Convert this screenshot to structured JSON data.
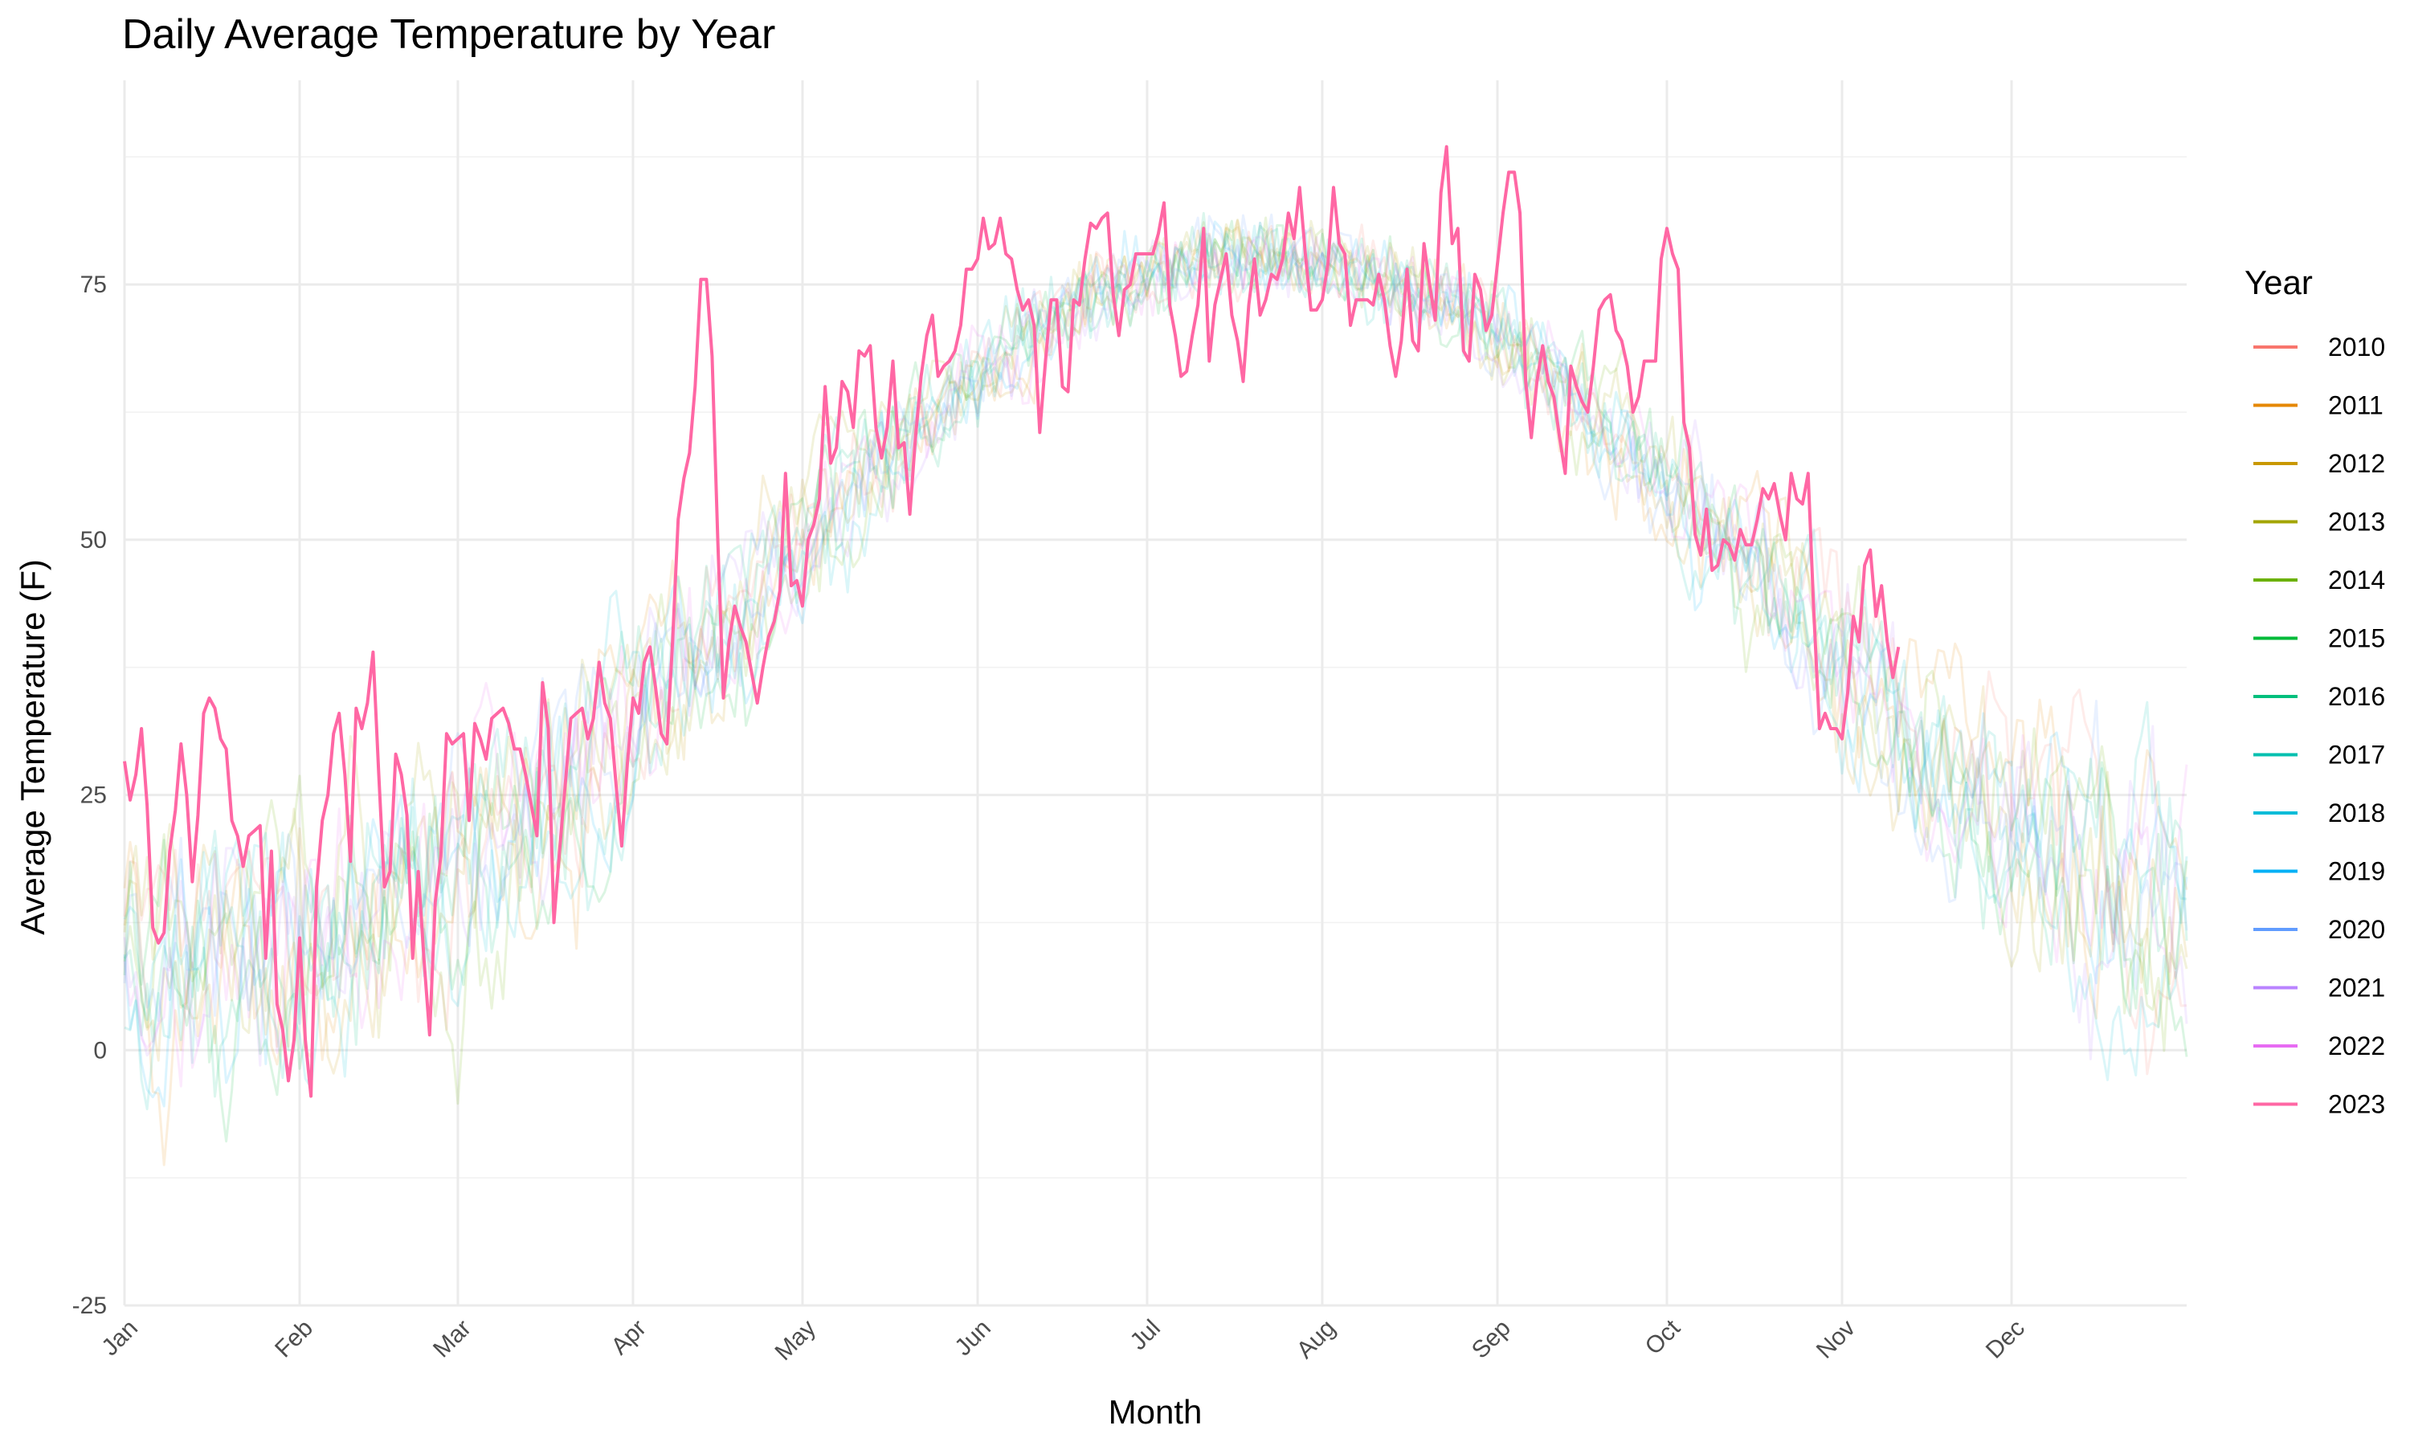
{
  "chart_data": {
    "type": "line",
    "title": "Daily Average Temperature by Year",
    "xlabel": "Month",
    "ylabel": "Average Temperature (F)",
    "x_ticks": [
      "Jan",
      "Feb",
      "Mar",
      "Apr",
      "May",
      "Jun",
      "Jul",
      "Aug",
      "Sep",
      "Oct",
      "Nov",
      "Dec"
    ],
    "y_ticks": [
      -25,
      0,
      25,
      50,
      75
    ],
    "ylim": [
      -25,
      95
    ],
    "xlim_days": [
      1,
      366
    ],
    "grid": true,
    "legend": {
      "title": "Year",
      "placement": "right",
      "entries": [
        {
          "name": "2010",
          "color": "#F8766D"
        },
        {
          "name": "2011",
          "color": "#E58700"
        },
        {
          "name": "2012",
          "color": "#C99800"
        },
        {
          "name": "2013",
          "color": "#A3A500"
        },
        {
          "name": "2014",
          "color": "#6BB100"
        },
        {
          "name": "2015",
          "color": "#00BA38"
        },
        {
          "name": "2016",
          "color": "#00BF7D"
        },
        {
          "name": "2017",
          "color": "#00C0AF"
        },
        {
          "name": "2018",
          "color": "#00BCD8"
        },
        {
          "name": "2019",
          "color": "#00B0F6"
        },
        {
          "name": "2020",
          "color": "#619CFF"
        },
        {
          "name": "2021",
          "color": "#B983FF"
        },
        {
          "name": "2022",
          "color": "#E76BF3"
        },
        {
          "name": "2023",
          "color": "#FF67A4"
        }
      ]
    },
    "highlight_series": {
      "name": "2023",
      "color": "#FF67A4",
      "points": [
        [
          1,
          28.3
        ],
        [
          2,
          24.5
        ],
        [
          3,
          27
        ],
        [
          4,
          31.5
        ],
        [
          5,
          24
        ],
        [
          6,
          12
        ],
        [
          7,
          10.5
        ],
        [
          8,
          11.5
        ],
        [
          9,
          19.5
        ],
        [
          10,
          23.5
        ],
        [
          11,
          30
        ],
        [
          12,
          25
        ],
        [
          13,
          16.5
        ],
        [
          14,
          23
        ],
        [
          15,
          33
        ],
        [
          16,
          34.5
        ],
        [
          17,
          33.5
        ],
        [
          18,
          30.5
        ],
        [
          19,
          29.5
        ],
        [
          20,
          22.5
        ],
        [
          21,
          21
        ],
        [
          22,
          18
        ],
        [
          23,
          21
        ],
        [
          24,
          21.5
        ],
        [
          25,
          22
        ],
        [
          26,
          9
        ],
        [
          27,
          19.5
        ],
        [
          28,
          4.5
        ],
        [
          29,
          2
        ],
        [
          30,
          -3
        ],
        [
          31,
          1
        ],
        [
          32,
          11
        ],
        [
          33,
          1
        ],
        [
          34,
          -4.5
        ],
        [
          35,
          16
        ],
        [
          36,
          22.5
        ],
        [
          37,
          25
        ],
        [
          38,
          31
        ],
        [
          39,
          33
        ],
        [
          40,
          27
        ],
        [
          41,
          18.5
        ],
        [
          42,
          33.5
        ],
        [
          43,
          31.5
        ],
        [
          44,
          34
        ],
        [
          45,
          39
        ],
        [
          46,
          27
        ],
        [
          47,
          16
        ],
        [
          48,
          17.5
        ],
        [
          49,
          29
        ],
        [
          50,
          27
        ],
        [
          51,
          23
        ],
        [
          52,
          9
        ],
        [
          53,
          17.5
        ],
        [
          54,
          9
        ],
        [
          55,
          1.5
        ],
        [
          56,
          14.5
        ],
        [
          57,
          19
        ],
        [
          58,
          31
        ],
        [
          59,
          30
        ],
        [
          60,
          30.5
        ],
        [
          61,
          31
        ],
        [
          62,
          22.5
        ],
        [
          63,
          32
        ],
        [
          64,
          30.5
        ],
        [
          65,
          28.5
        ],
        [
          66,
          32.5
        ],
        [
          67,
          33
        ],
        [
          68,
          33.5
        ],
        [
          69,
          32
        ],
        [
          70,
          29.5
        ],
        [
          71,
          29.5
        ],
        [
          72,
          27
        ],
        [
          73,
          24
        ],
        [
          74,
          21
        ],
        [
          75,
          36
        ],
        [
          76,
          31.5
        ],
        [
          77,
          12.5
        ],
        [
          78,
          19.5
        ],
        [
          79,
          26
        ],
        [
          80,
          32.5
        ],
        [
          81,
          33
        ],
        [
          82,
          33.5
        ],
        [
          83,
          30.5
        ],
        [
          84,
          32.5
        ],
        [
          85,
          38
        ],
        [
          86,
          34
        ],
        [
          87,
          32.5
        ],
        [
          88,
          26
        ],
        [
          89,
          20
        ],
        [
          90,
          28
        ],
        [
          91,
          34.5
        ],
        [
          92,
          33
        ],
        [
          93,
          38
        ],
        [
          94,
          39.5
        ],
        [
          95,
          35.5
        ],
        [
          96,
          31
        ],
        [
          97,
          30
        ],
        [
          98,
          40
        ],
        [
          99,
          52
        ],
        [
          100,
          56
        ],
        [
          101,
          58.5
        ],
        [
          102,
          65
        ],
        [
          103,
          75.5
        ],
        [
          104,
          75.5
        ],
        [
          105,
          68
        ],
        [
          106,
          50
        ],
        [
          107,
          34.5
        ],
        [
          108,
          40
        ],
        [
          109,
          43.5
        ],
        [
          110,
          41.5
        ],
        [
          111,
          40
        ],
        [
          112,
          37
        ],
        [
          113,
          34
        ],
        [
          114,
          37.5
        ],
        [
          115,
          40.5
        ],
        [
          116,
          42
        ],
        [
          117,
          45
        ],
        [
          118,
          56.5
        ],
        [
          119,
          45.5
        ],
        [
          120,
          46
        ],
        [
          121,
          43.5
        ],
        [
          122,
          50
        ],
        [
          123,
          51.5
        ],
        [
          124,
          54
        ],
        [
          125,
          65
        ],
        [
          126,
          57.5
        ],
        [
          127,
          59
        ],
        [
          128,
          65.5
        ],
        [
          129,
          64.5
        ],
        [
          130,
          61
        ],
        [
          131,
          68.5
        ],
        [
          132,
          68
        ],
        [
          133,
          69
        ],
        [
          134,
          61
        ],
        [
          135,
          58
        ],
        [
          136,
          61
        ],
        [
          137,
          67.5
        ],
        [
          138,
          59
        ],
        [
          139,
          59.5
        ],
        [
          140,
          52.5
        ],
        [
          141,
          60
        ],
        [
          142,
          66
        ],
        [
          143,
          70
        ],
        [
          144,
          72
        ],
        [
          145,
          66
        ],
        [
          146,
          67
        ],
        [
          147,
          67.5
        ],
        [
          148,
          68.5
        ],
        [
          149,
          71
        ],
        [
          150,
          76.5
        ],
        [
          151,
          76.5
        ],
        [
          152,
          77.5
        ],
        [
          153,
          81.5
        ],
        [
          154,
          78.5
        ],
        [
          155,
          79
        ],
        [
          156,
          81.5
        ],
        [
          157,
          78
        ],
        [
          158,
          77.5
        ],
        [
          159,
          74.5
        ],
        [
          160,
          72.5
        ],
        [
          161,
          73.5
        ],
        [
          162,
          71
        ],
        [
          163,
          60.5
        ],
        [
          164,
          67.5
        ],
        [
          165,
          73.5
        ],
        [
          166,
          73.5
        ],
        [
          167,
          65
        ],
        [
          168,
          64.5
        ],
        [
          169,
          73.5
        ],
        [
          170,
          73
        ],
        [
          171,
          77.5
        ],
        [
          172,
          81
        ],
        [
          173,
          80.5
        ],
        [
          174,
          81.5
        ],
        [
          175,
          82
        ],
        [
          176,
          74
        ],
        [
          177,
          70
        ],
        [
          178,
          74.5
        ],
        [
          179,
          75
        ],
        [
          180,
          78
        ],
        [
          181,
          78
        ],
        [
          182,
          78
        ],
        [
          183,
          78
        ],
        [
          184,
          80
        ],
        [
          185,
          83
        ],
        [
          186,
          73
        ],
        [
          187,
          70
        ],
        [
          188,
          66
        ],
        [
          189,
          66.5
        ],
        [
          190,
          70
        ],
        [
          191,
          73
        ],
        [
          192,
          80.5
        ],
        [
          193,
          67.5
        ],
        [
          194,
          73
        ],
        [
          195,
          75.5
        ],
        [
          196,
          78
        ],
        [
          197,
          72
        ],
        [
          198,
          69.5
        ],
        [
          199,
          65.5
        ],
        [
          200,
          73
        ],
        [
          201,
          77.5
        ],
        [
          202,
          72
        ],
        [
          203,
          73.5
        ],
        [
          204,
          76
        ],
        [
          205,
          75.5
        ],
        [
          206,
          77.5
        ],
        [
          207,
          82
        ],
        [
          208,
          79.5
        ],
        [
          209,
          84.5
        ],
        [
          210,
          78
        ],
        [
          211,
          72.5
        ],
        [
          212,
          72.5
        ],
        [
          213,
          73.5
        ],
        [
          214,
          77
        ],
        [
          215,
          84.5
        ],
        [
          216,
          79
        ],
        [
          217,
          78
        ],
        [
          218,
          71
        ],
        [
          219,
          73.5
        ],
        [
          220,
          73.5
        ],
        [
          221,
          73.5
        ],
        [
          222,
          73
        ],
        [
          223,
          76
        ],
        [
          224,
          73.5
        ],
        [
          225,
          69
        ],
        [
          226,
          66
        ],
        [
          227,
          69.5
        ],
        [
          228,
          76.5
        ],
        [
          229,
          69.5
        ],
        [
          230,
          68.5
        ],
        [
          231,
          79
        ],
        [
          232,
          75
        ],
        [
          233,
          71.5
        ],
        [
          234,
          84
        ],
        [
          235,
          88.5
        ],
        [
          236,
          79
        ],
        [
          237,
          80.5
        ],
        [
          238,
          68.5
        ],
        [
          239,
          67.5
        ],
        [
          240,
          76
        ],
        [
          241,
          74.5
        ],
        [
          242,
          70.5
        ],
        [
          243,
          72
        ],
        [
          244,
          77
        ],
        [
          245,
          82
        ],
        [
          246,
          86
        ],
        [
          247,
          86
        ],
        [
          248,
          82
        ],
        [
          249,
          65.5
        ],
        [
          250,
          60
        ],
        [
          251,
          65.5
        ],
        [
          252,
          69
        ],
        [
          253,
          65.5
        ],
        [
          254,
          64
        ],
        [
          255,
          60
        ],
        [
          256,
          56.5
        ],
        [
          257,
          67
        ],
        [
          258,
          65
        ],
        [
          259,
          63.5
        ],
        [
          260,
          62.5
        ],
        [
          261,
          67
        ],
        [
          262,
          72.5
        ],
        [
          263,
          73.5
        ],
        [
          264,
          74
        ],
        [
          265,
          70.5
        ],
        [
          266,
          69.5
        ],
        [
          267,
          67
        ],
        [
          268,
          62.5
        ],
        [
          269,
          64
        ],
        [
          270,
          67.5
        ],
        [
          271,
          67.5
        ],
        [
          272,
          67.5
        ],
        [
          273,
          77.5
        ],
        [
          274,
          80.5
        ],
        [
          275,
          78
        ],
        [
          276,
          76.5
        ],
        [
          277,
          61.5
        ],
        [
          278,
          59
        ],
        [
          279,
          50.5
        ],
        [
          280,
          48.5
        ],
        [
          281,
          53
        ],
        [
          282,
          47
        ],
        [
          283,
          47.5
        ],
        [
          284,
          50
        ],
        [
          285,
          49.5
        ],
        [
          286,
          48
        ],
        [
          287,
          51
        ],
        [
          288,
          49.5
        ],
        [
          289,
          49.5
        ],
        [
          290,
          52
        ],
        [
          291,
          55
        ],
        [
          292,
          54
        ],
        [
          293,
          55.5
        ],
        [
          294,
          52.5
        ],
        [
          295,
          50
        ],
        [
          296,
          56.5
        ],
        [
          297,
          54
        ],
        [
          298,
          53.5
        ],
        [
          299,
          56.5
        ],
        [
          300,
          43
        ],
        [
          301,
          31.5
        ],
        [
          302,
          33
        ],
        [
          303,
          31.5
        ],
        [
          304,
          31.5
        ],
        [
          305,
          30.5
        ],
        [
          306,
          35
        ],
        [
          307,
          42.5
        ],
        [
          308,
          40
        ],
        [
          309,
          47.5
        ],
        [
          310,
          49
        ],
        [
          311,
          42.5
        ],
        [
          312,
          45.5
        ],
        [
          313,
          40
        ],
        [
          314,
          36.5
        ],
        [
          315,
          39.5
        ]
      ]
    },
    "background_series_note_colors": [
      "#F8766D",
      "#E58700",
      "#C99800",
      "#A3A500",
      "#6BB100",
      "#00BA38",
      "#00BF7D",
      "#00C0AF",
      "#00BCD8",
      "#00B0F6",
      "#619CFF",
      "#B983FF",
      "#E76BF3"
    ]
  }
}
